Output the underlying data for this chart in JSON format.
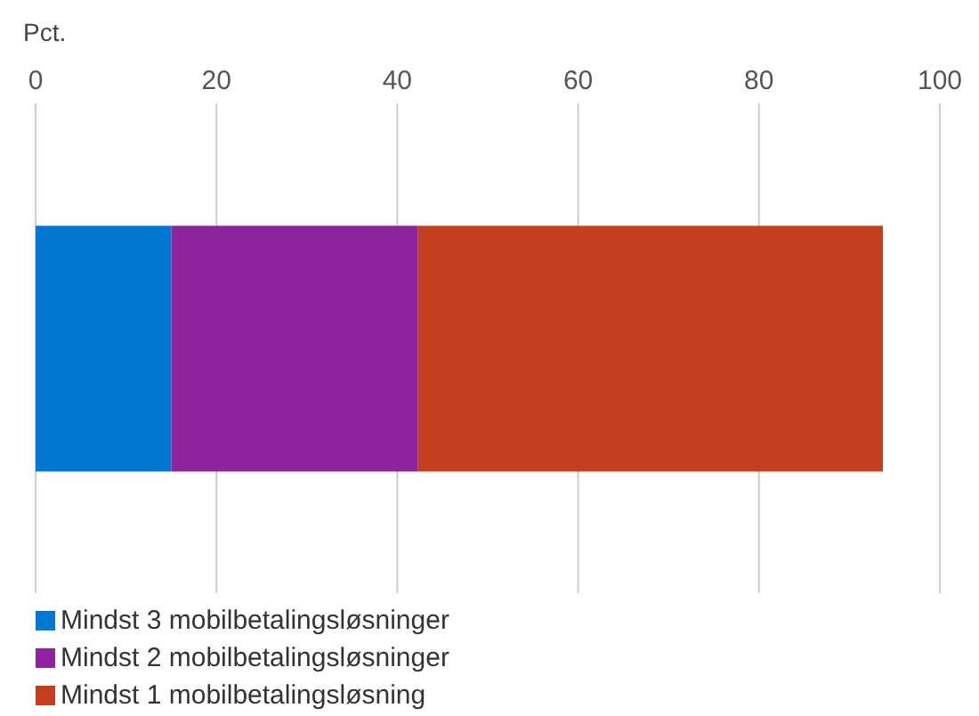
{
  "chart_data": {
    "type": "bar",
    "orientation": "horizontal",
    "stacked": true,
    "xlabel": "Pct.",
    "categories": [
      null
    ],
    "series": [
      {
        "name": "Mindst 3 mobilbetalingsløsninger",
        "color": "#0078d2",
        "values": [
          15
        ]
      },
      {
        "name": "Mindst 2 mobilbetalingsløsninger",
        "color": "#8e239e",
        "values": [
          27.3
        ]
      },
      {
        "name": "Mindst 1 mobilbetalingsløsning",
        "color": "#c43e20",
        "values": [
          51.4
        ]
      }
    ],
    "xlim": [
      0,
      100
    ],
    "xticks": [
      0,
      20,
      40,
      60,
      80,
      100
    ],
    "grid": "x",
    "legend": "bottom"
  }
}
